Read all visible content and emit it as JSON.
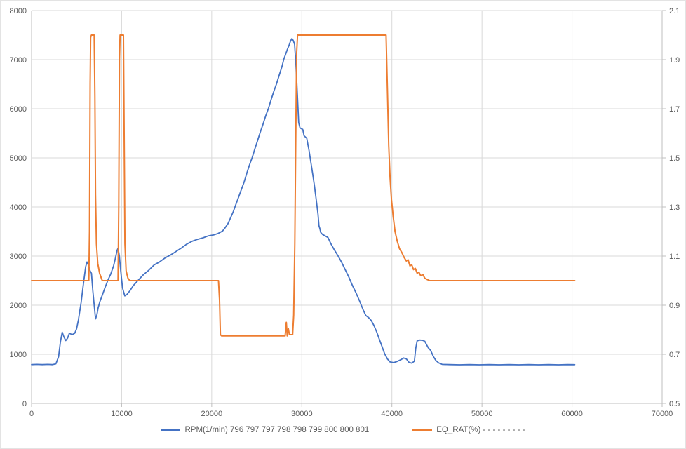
{
  "chart_data": {
    "type": "line",
    "title": "",
    "grid": true,
    "legend_position": "bottom",
    "x_axis": {
      "min": 0,
      "max": 70000,
      "step": 10000,
      "labels": [
        "0",
        "10000",
        "20000",
        "30000",
        "40000",
        "50000",
        "60000",
        "70000"
      ]
    },
    "y_axis_left": {
      "min": 0,
      "max": 8000,
      "step": 1000,
      "labels": [
        "0",
        "1000",
        "2000",
        "3000",
        "4000",
        "5000",
        "6000",
        "7000",
        "8000"
      ]
    },
    "y_axis_right": {
      "min": 0.5,
      "max": 2.1,
      "step": 0.2,
      "labels": [
        "0.5",
        "0.7",
        "0.9",
        "1.1",
        "1.3",
        "1.5",
        "1.7",
        "1.9",
        "2.1"
      ]
    },
    "series": [
      {
        "name": "RPM(1/min) 796 797 797 798 798 799 800 800 801",
        "axis": "left",
        "color": "#4472C4",
        "stroke_width": 1.8,
        "points": [
          [
            0,
            790
          ],
          [
            600,
            795
          ],
          [
            1200,
            790
          ],
          [
            1800,
            795
          ],
          [
            2300,
            790
          ],
          [
            2700,
            805
          ],
          [
            3000,
            950
          ],
          [
            3200,
            1250
          ],
          [
            3400,
            1450
          ],
          [
            3600,
            1350
          ],
          [
            3800,
            1280
          ],
          [
            4000,
            1330
          ],
          [
            4200,
            1430
          ],
          [
            4500,
            1400
          ],
          [
            4800,
            1430
          ],
          [
            5000,
            1520
          ],
          [
            5200,
            1700
          ],
          [
            5500,
            2050
          ],
          [
            5800,
            2500
          ],
          [
            6000,
            2780
          ],
          [
            6150,
            2880
          ],
          [
            6300,
            2820
          ],
          [
            6500,
            2700
          ],
          [
            6650,
            2650
          ],
          [
            6800,
            2300
          ],
          [
            6950,
            2000
          ],
          [
            7100,
            1720
          ],
          [
            7250,
            1800
          ],
          [
            7400,
            1950
          ],
          [
            7600,
            2080
          ],
          [
            7900,
            2230
          ],
          [
            8200,
            2380
          ],
          [
            8500,
            2520
          ],
          [
            8800,
            2640
          ],
          [
            9100,
            2800
          ],
          [
            9300,
            2950
          ],
          [
            9500,
            3120
          ],
          [
            9600,
            3160
          ],
          [
            9750,
            3000
          ],
          [
            9900,
            2700
          ],
          [
            10100,
            2350
          ],
          [
            10350,
            2190
          ],
          [
            10600,
            2220
          ],
          [
            10900,
            2290
          ],
          [
            11300,
            2400
          ],
          [
            11800,
            2500
          ],
          [
            12400,
            2620
          ],
          [
            13000,
            2710
          ],
          [
            13600,
            2820
          ],
          [
            14200,
            2880
          ],
          [
            14800,
            2960
          ],
          [
            15400,
            3020
          ],
          [
            16000,
            3090
          ],
          [
            16600,
            3160
          ],
          [
            17200,
            3240
          ],
          [
            17800,
            3300
          ],
          [
            18400,
            3340
          ],
          [
            19000,
            3370
          ],
          [
            19600,
            3410
          ],
          [
            20200,
            3430
          ],
          [
            20700,
            3460
          ],
          [
            21200,
            3510
          ],
          [
            21500,
            3580
          ],
          [
            21800,
            3660
          ],
          [
            22100,
            3780
          ],
          [
            22400,
            3910
          ],
          [
            22700,
            4060
          ],
          [
            23000,
            4210
          ],
          [
            23300,
            4360
          ],
          [
            23600,
            4510
          ],
          [
            23900,
            4690
          ],
          [
            24200,
            4860
          ],
          [
            24500,
            5010
          ],
          [
            24800,
            5190
          ],
          [
            25100,
            5360
          ],
          [
            25400,
            5530
          ],
          [
            25700,
            5690
          ],
          [
            26000,
            5860
          ],
          [
            26300,
            6010
          ],
          [
            26600,
            6190
          ],
          [
            26900,
            6360
          ],
          [
            27200,
            6510
          ],
          [
            27500,
            6690
          ],
          [
            27800,
            6860
          ],
          [
            28000,
            7010
          ],
          [
            28200,
            7110
          ],
          [
            28400,
            7210
          ],
          [
            28600,
            7300
          ],
          [
            28750,
            7380
          ],
          [
            28900,
            7430
          ],
          [
            29050,
            7390
          ],
          [
            29200,
            7310
          ],
          [
            29350,
            6900
          ],
          [
            29500,
            6300
          ],
          [
            29650,
            5720
          ],
          [
            29800,
            5610
          ],
          [
            30100,
            5580
          ],
          [
            30250,
            5450
          ],
          [
            30550,
            5400
          ],
          [
            30800,
            5150
          ],
          [
            31000,
            4920
          ],
          [
            31200,
            4680
          ],
          [
            31400,
            4430
          ],
          [
            31600,
            4150
          ],
          [
            31800,
            3850
          ],
          [
            31900,
            3620
          ],
          [
            32000,
            3560
          ],
          [
            32100,
            3480
          ],
          [
            32300,
            3440
          ],
          [
            32600,
            3410
          ],
          [
            32900,
            3380
          ],
          [
            33200,
            3260
          ],
          [
            33600,
            3130
          ],
          [
            34000,
            3010
          ],
          [
            34400,
            2880
          ],
          [
            34800,
            2730
          ],
          [
            35200,
            2580
          ],
          [
            35600,
            2410
          ],
          [
            36000,
            2260
          ],
          [
            36400,
            2090
          ],
          [
            36800,
            1910
          ],
          [
            37100,
            1790
          ],
          [
            37400,
            1750
          ],
          [
            37700,
            1690
          ],
          [
            38000,
            1590
          ],
          [
            38300,
            1460
          ],
          [
            38600,
            1310
          ],
          [
            38900,
            1160
          ],
          [
            39200,
            1010
          ],
          [
            39500,
            905
          ],
          [
            39800,
            845
          ],
          [
            40200,
            830
          ],
          [
            40600,
            855
          ],
          [
            41000,
            890
          ],
          [
            41300,
            925
          ],
          [
            41600,
            905
          ],
          [
            41900,
            835
          ],
          [
            42200,
            820
          ],
          [
            42500,
            860
          ],
          [
            42650,
            1120
          ],
          [
            42800,
            1275
          ],
          [
            43100,
            1290
          ],
          [
            43400,
            1285
          ],
          [
            43650,
            1265
          ],
          [
            43850,
            1195
          ],
          [
            44050,
            1130
          ],
          [
            44300,
            1080
          ],
          [
            44600,
            955
          ],
          [
            44900,
            870
          ],
          [
            45200,
            825
          ],
          [
            45600,
            795
          ],
          [
            46400,
            790
          ],
          [
            47500,
            785
          ],
          [
            48600,
            790
          ],
          [
            49700,
            786
          ],
          [
            50800,
            790
          ],
          [
            51900,
            785
          ],
          [
            53000,
            790
          ],
          [
            54100,
            786
          ],
          [
            55200,
            790
          ],
          [
            56300,
            785
          ],
          [
            57400,
            790
          ],
          [
            58500,
            786
          ],
          [
            59500,
            790
          ],
          [
            60300,
            788
          ]
        ]
      },
      {
        "name": "EQ_RAT(%) - - - - - - - - -",
        "axis": "right",
        "color": "#ED7D31",
        "stroke_width": 2,
        "points": [
          [
            0,
            1.0
          ],
          [
            6350,
            1.0
          ],
          [
            6430,
            1.2
          ],
          [
            6500,
            1.8
          ],
          [
            6560,
            1.99
          ],
          [
            6650,
            2.0
          ],
          [
            6950,
            2.0
          ],
          [
            7030,
            1.75
          ],
          [
            7100,
            1.35
          ],
          [
            7200,
            1.15
          ],
          [
            7350,
            1.07
          ],
          [
            7550,
            1.03
          ],
          [
            7850,
            1.0
          ],
          [
            9600,
            1.0
          ],
          [
            9680,
            1.3
          ],
          [
            9760,
            1.9
          ],
          [
            9830,
            2.0
          ],
          [
            10200,
            2.0
          ],
          [
            10280,
            1.6
          ],
          [
            10360,
            1.15
          ],
          [
            10500,
            1.04
          ],
          [
            10700,
            1.01
          ],
          [
            10900,
            1.0
          ],
          [
            20750,
            1.0
          ],
          [
            20870,
            0.92
          ],
          [
            20960,
            0.78
          ],
          [
            21100,
            0.775
          ],
          [
            28150,
            0.775
          ],
          [
            28280,
            0.83
          ],
          [
            28380,
            0.775
          ],
          [
            28500,
            0.805
          ],
          [
            28620,
            0.78
          ],
          [
            28980,
            0.78
          ],
          [
            29100,
            0.86
          ],
          [
            29220,
            1.15
          ],
          [
            29330,
            1.6
          ],
          [
            29430,
            1.93
          ],
          [
            29530,
            2.0
          ],
          [
            39350,
            2.0
          ],
          [
            39500,
            1.78
          ],
          [
            39650,
            1.55
          ],
          [
            39800,
            1.42
          ],
          [
            39950,
            1.33
          ],
          [
            40150,
            1.26
          ],
          [
            40350,
            1.2
          ],
          [
            40600,
            1.16
          ],
          [
            40850,
            1.13
          ],
          [
            41100,
            1.115
          ],
          [
            41350,
            1.095
          ],
          [
            41600,
            1.08
          ],
          [
            41800,
            1.085
          ],
          [
            42000,
            1.06
          ],
          [
            42200,
            1.065
          ],
          [
            42400,
            1.045
          ],
          [
            42600,
            1.05
          ],
          [
            42800,
            1.03
          ],
          [
            43000,
            1.035
          ],
          [
            43200,
            1.02
          ],
          [
            43450,
            1.025
          ],
          [
            43650,
            1.01
          ],
          [
            43900,
            1.005
          ],
          [
            44200,
            1.0
          ],
          [
            60300,
            1.0
          ]
        ]
      }
    ]
  },
  "colors": {
    "rpm_series": "#4472C4",
    "eq_series": "#ED7D31",
    "gridline": "#D9D9D9",
    "axis_line": "#BFBFBF",
    "axis_text": "#595959",
    "background": "#FFFFFF"
  }
}
